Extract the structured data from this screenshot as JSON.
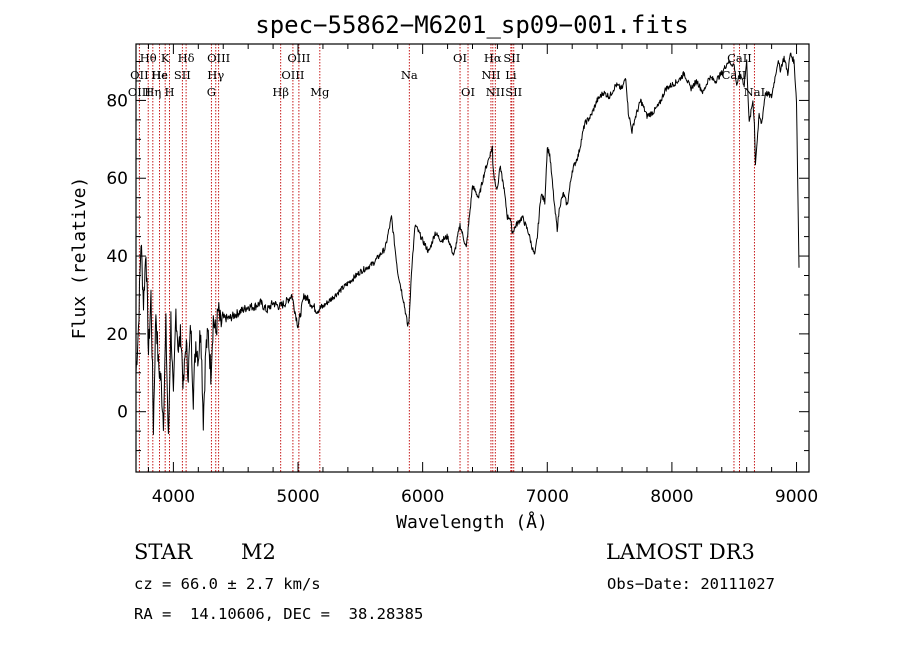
{
  "chart_data": {
    "type": "line",
    "title": "spec−55862−M6201_sp09−001.fits",
    "xlabel": "Wavelength (Å)",
    "ylabel": "Flux (relative)",
    "xlim": [
      3700,
      9100
    ],
    "ylim": [
      -15.5,
      94.5
    ],
    "x_ticks": [
      4000,
      5000,
      6000,
      7000,
      8000,
      9000
    ],
    "y_ticks": [
      0,
      20,
      40,
      60,
      80
    ],
    "grid": false,
    "legend": "none",
    "series": [
      {
        "x": [
          3700,
          3720,
          3740,
          3760,
          3780,
          3800,
          3820,
          3840,
          3860,
          3880,
          3900,
          3920,
          3940,
          3960,
          3980,
          4000,
          4020,
          4040,
          4060,
          4080,
          4100,
          4120,
          4140,
          4160,
          4180,
          4200,
          4220,
          4240,
          4260,
          4280,
          4300,
          4320,
          4340,
          4360,
          4380,
          4400,
          4450,
          4500,
          4550,
          4600,
          4650,
          4700,
          4750,
          4800,
          4850,
          4900,
          4950,
          5000,
          5050,
          5100,
          5150,
          5200,
          5300,
          5400,
          5500,
          5600,
          5700,
          5750,
          5800,
          5850,
          5880,
          5893,
          5910,
          5940,
          6000,
          6050,
          6100,
          6150,
          6200,
          6250,
          6300,
          6350,
          6400,
          6450,
          6500,
          6540,
          6560,
          6563,
          6575,
          6600,
          6620,
          6650,
          6680,
          6700,
          6720,
          6750,
          6800,
          6850,
          6880,
          6900,
          6920,
          6950,
          6980,
          7000,
          7020,
          7060,
          7080,
          7100,
          7130,
          7160,
          7200,
          7250,
          7300,
          7350,
          7400,
          7450,
          7500,
          7550,
          7600,
          7630,
          7650,
          7680,
          7700,
          7750,
          7800,
          7850,
          7900,
          7950,
          8000,
          8050,
          8100,
          8150,
          8200,
          8250,
          8300,
          8350,
          8400,
          8450,
          8500,
          8520,
          8540,
          8560,
          8580,
          8600,
          8620,
          8650,
          8662,
          8670,
          8700,
          8720,
          8750,
          8800,
          8850,
          8870,
          8900,
          8930,
          8950,
          8980,
          9000,
          9020
        ],
        "y": [
          10,
          22,
          44,
          28,
          42,
          15,
          30,
          -4,
          26,
          12,
          8,
          -2,
          22,
          -8,
          24,
          2,
          26,
          16,
          20,
          6,
          18,
          10,
          22,
          4,
          18,
          14,
          22,
          -2,
          16,
          20,
          10,
          24,
          20,
          26,
          22,
          24,
          24,
          25,
          26,
          27,
          27,
          28,
          26,
          28,
          27,
          28,
          30,
          22,
          30,
          28,
          26,
          27,
          30,
          33,
          36,
          38,
          42,
          50,
          36,
          28,
          22,
          24,
          36,
          48,
          44,
          41,
          46,
          44,
          45,
          40,
          48,
          42,
          58,
          55,
          62,
          66,
          68,
          64,
          60,
          57,
          63,
          58,
          50,
          50,
          46,
          48,
          50,
          46,
          42,
          40,
          45,
          56,
          54,
          68,
          66,
          52,
          47,
          53,
          56,
          53,
          62,
          66,
          74,
          76,
          80,
          82,
          81,
          84,
          83,
          86,
          77,
          72,
          75,
          80,
          76,
          77,
          79,
          83,
          84,
          85,
          87,
          83,
          85,
          82,
          86,
          85,
          87,
          90,
          89,
          84,
          86,
          86,
          84,
          90,
          74,
          80,
          74,
          64,
          76,
          74,
          82,
          81,
          90,
          88,
          91,
          87,
          92,
          90,
          80,
          37
        ]
      }
    ],
    "emission_line_labels": [
      {
        "text": "Hθ",
        "wavelength": 3798
      },
      {
        "text": "OII",
        "wavelength": 3727
      },
      {
        "text": "OIII",
        "wavelength": 3727
      },
      {
        "text": "Hε",
        "wavelength": 3889
      },
      {
        "text": "He",
        "wavelength": 3889
      },
      {
        "text": "Hη",
        "wavelength": 3835
      },
      {
        "text": "K",
        "wavelength": 3934
      },
      {
        "text": "H",
        "wavelength": 3969
      },
      {
        "text": "Hδ",
        "wavelength": 4102
      },
      {
        "text": "SII",
        "wavelength": 4072
      },
      {
        "text": "OIII",
        "wavelength": 4363
      },
      {
        "text": "Hγ",
        "wavelength": 4340
      },
      {
        "text": "G",
        "wavelength": 4305
      },
      {
        "text": "OIII",
        "wavelength": 5007
      },
      {
        "text": "OIII",
        "wavelength": 4959
      },
      {
        "text": "Hβ",
        "wavelength": 4861
      },
      {
        "text": "Mg",
        "wavelength": 5175
      },
      {
        "text": "Na",
        "wavelength": 5893
      },
      {
        "text": "OI",
        "wavelength": 6300
      },
      {
        "text": "OI",
        "wavelength": 6364
      },
      {
        "text": "Hα",
        "wavelength": 6563
      },
      {
        "text": "SII",
        "wavelength": 6716
      },
      {
        "text": "NII",
        "wavelength": 6548
      },
      {
        "text": "Li",
        "wavelength": 6708
      },
      {
        "text": "NII",
        "wavelength": 6583
      },
      {
        "text": "SII",
        "wavelength": 6731
      },
      {
        "text": "CaII",
        "wavelength": 8542
      },
      {
        "text": "CaII",
        "wavelength": 8498
      },
      {
        "text": "NaI",
        "wavelength": 8662
      }
    ],
    "marker_wavelengths": [
      3727,
      3798,
      3835,
      3889,
      3934,
      3969,
      4072,
      4102,
      4305,
      4340,
      4363,
      4861,
      4959,
      5007,
      5175,
      5893,
      6300,
      6364,
      6548,
      6563,
      6583,
      6708,
      6716,
      6731,
      8498,
      8542,
      8662
    ]
  },
  "info": {
    "object_class": "STAR",
    "subclass": "M2",
    "survey": "LAMOST DR3",
    "redshift_line": "cz = 66.0 ± 2.7 km/s",
    "obs_date_line": "Obs−Date: 20111027",
    "coords_line": "RA =  14.10606, DEC =  38.28385"
  },
  "colors": {
    "spectrum": "#000000",
    "marker_lines": "#c00000",
    "axes": "#000000"
  }
}
